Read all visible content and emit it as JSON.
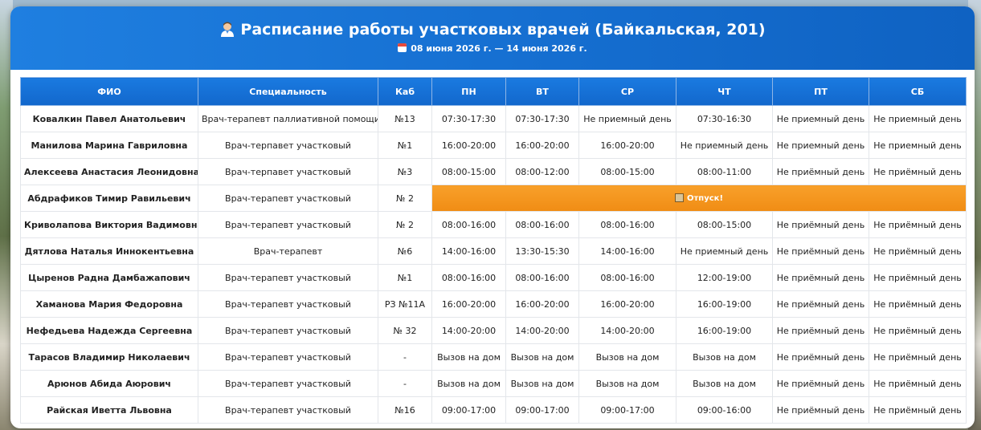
{
  "header": {
    "title": "Расписание работы участковых врачей (Байкальская, 201)",
    "dates": "08 июня 2026 г. — 14 июня 2026 г.",
    "title_icon": "doctor-emoji-icon",
    "dates_icon": "calendar-icon"
  },
  "columns": [
    "ФИО",
    "Специальность",
    "Каб",
    "ПН",
    "ВТ",
    "СР",
    "ЧТ",
    "ПТ",
    "СБ"
  ],
  "rows": [
    {
      "name": "Ковалкин Павел Анатольевич",
      "spec": "Врач-терапевт паллиативной помощи",
      "cab": "№13",
      "days": [
        "07:30-17:30",
        "07:30-17:30",
        "Не приемный день",
        "07:30-16:30",
        "Не приемный день",
        "Не приемный день"
      ]
    },
    {
      "name": "Манилова Марина Гавриловна",
      "spec": "Врач-терпавет участковый",
      "cab": "№1",
      "days": [
        "16:00-20:00",
        "16:00-20:00",
        "16:00-20:00",
        "Не приемный день",
        "Не приемный день",
        "Не приемный день"
      ]
    },
    {
      "name": "Алексеева Анастасия Леонидовна",
      "spec": "Врач-терпавет участковый",
      "cab": "№3",
      "days": [
        "08:00-15:00",
        "08:00-12:00",
        "08:00-15:00",
        "08:00-11:00",
        "Не приёмный день",
        "Не приёмный день"
      ]
    },
    {
      "name": "Абдрафиков Тимир Равильевич",
      "spec": "Врач-терапевт участковый",
      "cab": "№ 2",
      "vacation": "Отпуск!"
    },
    {
      "name": "Криволапова Виктория Вадимовна",
      "spec": "Врач-терапевт участковый",
      "cab": "№ 2",
      "days": [
        "08:00-16:00",
        "08:00-16:00",
        "08:00-16:00",
        "08:00-15:00",
        "Не приёмный день",
        "Не приёмный день"
      ]
    },
    {
      "name": "Дятлова Наталья Иннокентьевна",
      "spec": "Врач-терапевт",
      "cab": "№6",
      "days": [
        "14:00-16:00",
        "13:30-15:30",
        "14:00-16:00",
        "Не приемный день",
        "Не приёмный день",
        "Не приёмный день"
      ]
    },
    {
      "name": "Цыренов Радна Дамбажапович",
      "spec": "Врач-терапевт участковый",
      "cab": "№1",
      "days": [
        "08:00-16:00",
        "08:00-16:00",
        "08:00-16:00",
        "12:00-19:00",
        "Не приёмный день",
        "Не приёмный день"
      ]
    },
    {
      "name": "Хаманова Мария Федоровна",
      "spec": "Врач-терапевт участковый",
      "cab": "РЗ №11А",
      "days": [
        "16:00-20:00",
        "16:00-20:00",
        "16:00-20:00",
        "16:00-19:00",
        "Не приёмный день",
        "Не приёмный день"
      ]
    },
    {
      "name": "Нефедьева Надежда Сергеевна",
      "spec": "Врач-терапевт участковый",
      "cab": "№ 32",
      "days": [
        "14:00-20:00",
        "14:00-20:00",
        "14:00-20:00",
        "16:00-19:00",
        "Не приёмный день",
        "Не приёмный день"
      ]
    },
    {
      "name": "Тарасов Владимир Николаевич",
      "spec": "Врач-терапевт участковый",
      "cab": "-",
      "days": [
        "Вызов на дом",
        "Вызов на дом",
        "Вызов на дом",
        "Вызов на дом",
        "Не приёмный день",
        "Не приёмный день"
      ]
    },
    {
      "name": "Арюнов Абида Аюрович",
      "spec": "Врач-терапевт участковый",
      "cab": "-",
      "days": [
        "Вызов на дом",
        "Вызов на дом",
        "Вызов на дом",
        "Вызов на дом",
        "Не приёмный день",
        "Не приёмный день"
      ]
    },
    {
      "name": "Райская Иветта Львовна",
      "spec": "Врач-терапевт участковый",
      "cab": "№16",
      "days": [
        "09:00-17:00",
        "09:00-17:00",
        "09:00-17:00",
        "09:00-16:00",
        "Не приёмный день",
        "Не приёмный день"
      ]
    }
  ]
}
